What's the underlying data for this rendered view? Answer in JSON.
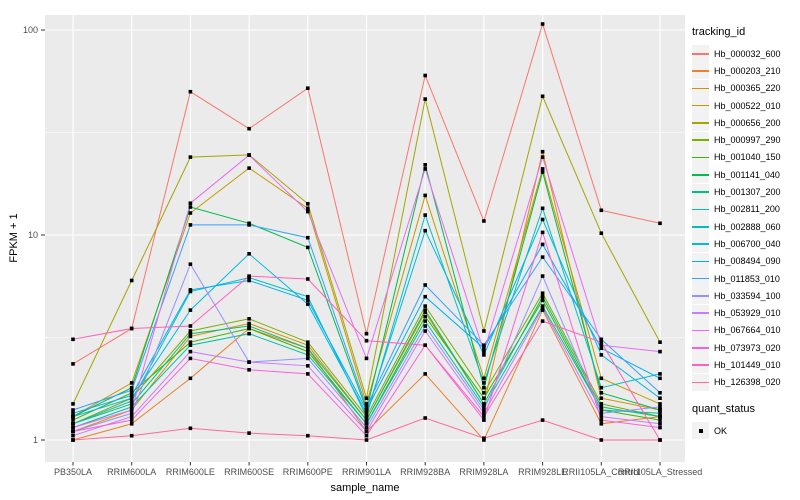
{
  "colors": {
    "panel_bg": "#EBEBEB",
    "grid": "#FFFFFF",
    "axis_text": "#4D4D4D",
    "tick_mark": "#333333",
    "axis_title": "#000000",
    "legend_key_bg": "#F2F2F2",
    "point": "#000000"
  },
  "chart_data": {
    "type": "line",
    "xlabel": "sample_name",
    "ylabel": "FPKM + 1",
    "y_scale": "log10",
    "y_ticks": [
      "1",
      "10",
      "100"
    ],
    "y_minor_breaks": [
      3.1623,
      31.623
    ],
    "ylim": [
      0.95,
      120
    ],
    "grid": true,
    "legend_position": "right",
    "legend_title": "tracking_id",
    "point_legend_title": "quant_status",
    "point_legend_label": "OK",
    "categories": [
      "PB350LA",
      "RRIM600LA",
      "RRIM600LE",
      "RRIM600SE",
      "RRIM600PE",
      "RRIM901LA",
      "RRIM928BA",
      "RRIM928LA",
      "RRIM928LE",
      "RRII105LA_Control",
      "RRII105LA_Stressed"
    ],
    "series": [
      {
        "name": "Hb_000032_600",
        "color": "#F8766D",
        "values": [
          2.35,
          3.5,
          50,
          33,
          52,
          3.3,
          60,
          11.7,
          107,
          13.2,
          11.4
        ]
      },
      {
        "name": "Hb_000203_210",
        "color": "#EA8331",
        "values": [
          1.0,
          1.2,
          2.0,
          3.5,
          2.8,
          1.1,
          2.1,
          1.0,
          4.3,
          1.2,
          1.3
        ]
      },
      {
        "name": "Hb_000365_220",
        "color": "#D89000",
        "values": [
          1.1,
          1.4,
          3.2,
          3.7,
          2.9,
          1.25,
          4.2,
          1.5,
          25.5,
          1.6,
          1.4
        ]
      },
      {
        "name": "Hb_000522_010",
        "color": "#C09B00",
        "values": [
          1.3,
          1.9,
          12.8,
          21.2,
          13.5,
          1.5,
          15.6,
          2.0,
          21.0,
          2.0,
          1.5
        ]
      },
      {
        "name": "Hb_000656_200",
        "color": "#A3A500",
        "values": [
          1.5,
          6.0,
          24.0,
          24.6,
          14.2,
          1.6,
          46.0,
          3.4,
          47.5,
          10.2,
          3.0
        ]
      },
      {
        "name": "Hb_000997_290",
        "color": "#7CAE00",
        "values": [
          1.2,
          1.6,
          3.4,
          3.9,
          3.0,
          1.3,
          4.5,
          1.7,
          5.2,
          1.5,
          1.3
        ]
      },
      {
        "name": "Hb_001040_150",
        "color": "#39B600",
        "values": [
          1.25,
          1.7,
          3.0,
          3.5,
          2.7,
          1.2,
          4.0,
          1.6,
          4.8,
          1.4,
          1.25
        ]
      },
      {
        "name": "Hb_001141_040",
        "color": "#00BB4E",
        "values": [
          1.3,
          1.8,
          13.7,
          11.4,
          8.7,
          1.4,
          22.0,
          1.8,
          20.3,
          1.7,
          1.4
        ]
      },
      {
        "name": "Hb_001307_200",
        "color": "#00BF7D",
        "values": [
          1.2,
          1.5,
          3.3,
          3.6,
          2.8,
          1.25,
          4.3,
          1.5,
          5.0,
          1.45,
          1.3
        ]
      },
      {
        "name": "Hb_002811_200",
        "color": "#00C1A3",
        "values": [
          1.15,
          1.45,
          2.9,
          3.3,
          2.6,
          1.2,
          3.8,
          1.45,
          4.5,
          1.4,
          1.35
        ]
      },
      {
        "name": "Hb_002888_060",
        "color": "#00BFC4",
        "values": [
          1.2,
          1.55,
          5.3,
          6.2,
          5.0,
          1.3,
          12.5,
          1.9,
          13.5,
          1.8,
          2.1
        ]
      },
      {
        "name": "Hb_006700_040",
        "color": "#00BAE0",
        "values": [
          1.3,
          1.6,
          4.3,
          8.1,
          4.6,
          1.35,
          10.5,
          2.6,
          11.9,
          2.6,
          1.6
        ]
      },
      {
        "name": "Hb_008494_090",
        "color": "#00B0F6",
        "values": [
          1.35,
          1.65,
          5.4,
          6.0,
          4.8,
          1.4,
          5.0,
          2.8,
          9.0,
          2.8,
          2.0
        ]
      },
      {
        "name": "Hb_011853_010",
        "color": "#35A2FF",
        "values": [
          1.4,
          1.75,
          11.2,
          11.2,
          9.7,
          1.45,
          5.7,
          2.9,
          7.8,
          3.1,
          1.7
        ]
      },
      {
        "name": "Hb_033594_100",
        "color": "#9590FF",
        "values": [
          1.1,
          1.35,
          7.2,
          2.4,
          2.5,
          1.15,
          3.6,
          1.4,
          6.3,
          1.35,
          1.45
        ]
      },
      {
        "name": "Hb_053929_010",
        "color": "#C77CFF",
        "values": [
          1.05,
          1.3,
          2.7,
          2.4,
          2.3,
          1.1,
          3.4,
          1.35,
          4.4,
          1.3,
          1.2
        ]
      },
      {
        "name": "Hb_067664_010",
        "color": "#E76BF3",
        "values": [
          1.15,
          1.4,
          14.3,
          24.5,
          13.0,
          2.5,
          21.0,
          2.7,
          24.0,
          2.9,
          2.7
        ]
      },
      {
        "name": "Hb_073973_020",
        "color": "#FA62DB",
        "values": [
          1.1,
          1.25,
          2.5,
          2.2,
          2.1,
          1.05,
          2.9,
          1.25,
          10.3,
          1.25,
          1.15
        ]
      },
      {
        "name": "Hb_101449_010",
        "color": "#FF62BC",
        "values": [
          3.1,
          3.5,
          3.6,
          6.3,
          6.1,
          3.05,
          2.9,
          1.3,
          3.8,
          3.0,
          1.0
        ]
      },
      {
        "name": "Hb_126398_020",
        "color": "#FF6A98",
        "values": [
          1.0,
          1.05,
          1.14,
          1.08,
          1.05,
          1.0,
          1.28,
          1.02,
          1.25,
          1.0,
          1.0
        ]
      }
    ]
  }
}
